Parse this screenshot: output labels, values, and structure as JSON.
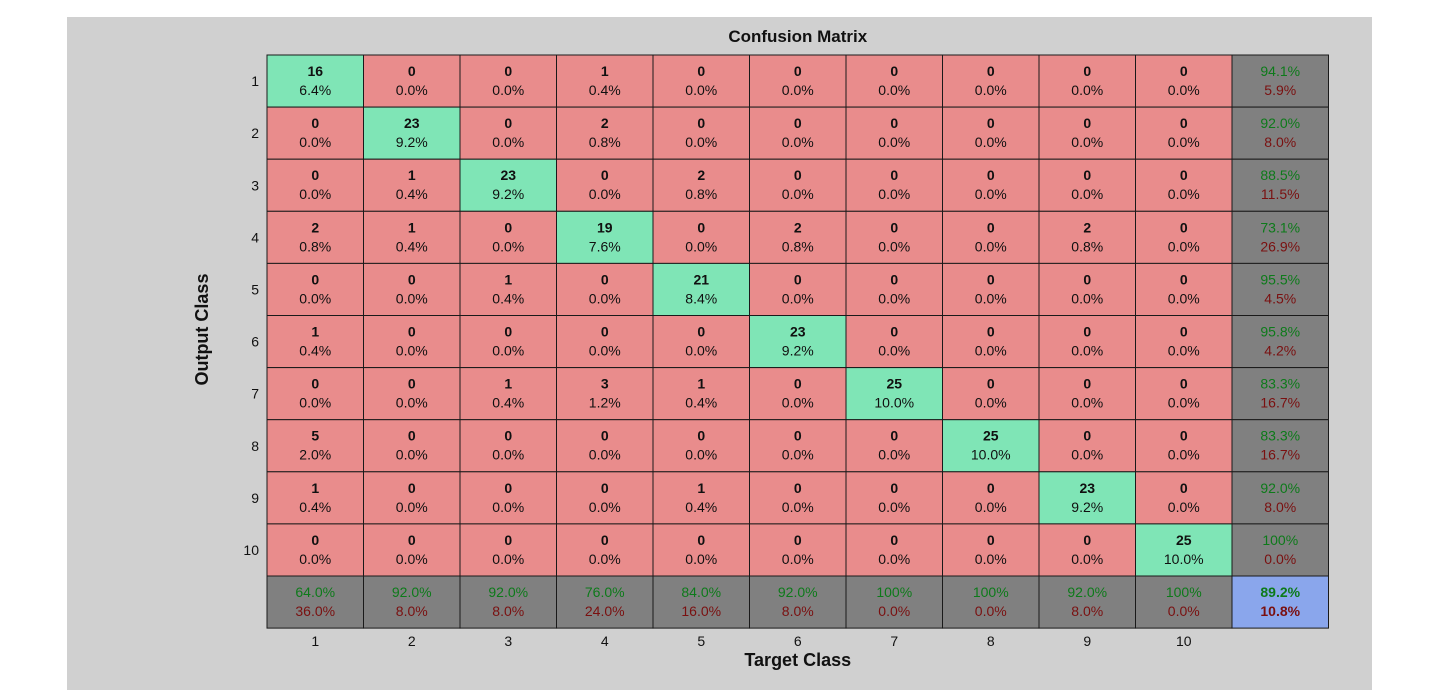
{
  "chart_data": {
    "type": "heatmap",
    "title": "Confusion Matrix",
    "xlabel": "Target Class",
    "ylabel": "Output Class",
    "row_labels": [
      "1",
      "2",
      "3",
      "4",
      "5",
      "6",
      "7",
      "8",
      "9",
      "10"
    ],
    "col_labels": [
      "1",
      "2",
      "3",
      "4",
      "5",
      "6",
      "7",
      "8",
      "9",
      "10"
    ],
    "counts": [
      [
        16,
        0,
        0,
        1,
        0,
        0,
        0,
        0,
        0,
        0
      ],
      [
        0,
        23,
        0,
        2,
        0,
        0,
        0,
        0,
        0,
        0
      ],
      [
        0,
        1,
        23,
        0,
        2,
        0,
        0,
        0,
        0,
        0
      ],
      [
        2,
        1,
        0,
        19,
        0,
        2,
        0,
        0,
        2,
        0
      ],
      [
        0,
        0,
        1,
        0,
        21,
        0,
        0,
        0,
        0,
        0
      ],
      [
        1,
        0,
        0,
        0,
        0,
        23,
        0,
        0,
        0,
        0
      ],
      [
        0,
        0,
        1,
        3,
        1,
        0,
        25,
        0,
        0,
        0
      ],
      [
        5,
        0,
        0,
        0,
        0,
        0,
        0,
        25,
        0,
        0
      ],
      [
        1,
        0,
        0,
        0,
        1,
        0,
        0,
        0,
        23,
        0
      ],
      [
        0,
        0,
        0,
        0,
        0,
        0,
        0,
        0,
        0,
        25
      ]
    ],
    "percents": [
      [
        "6.4%",
        "0.0%",
        "0.0%",
        "0.4%",
        "0.0%",
        "0.0%",
        "0.0%",
        "0.0%",
        "0.0%",
        "0.0%"
      ],
      [
        "0.0%",
        "9.2%",
        "0.0%",
        "0.8%",
        "0.0%",
        "0.0%",
        "0.0%",
        "0.0%",
        "0.0%",
        "0.0%"
      ],
      [
        "0.0%",
        "0.4%",
        "9.2%",
        "0.0%",
        "0.8%",
        "0.0%",
        "0.0%",
        "0.0%",
        "0.0%",
        "0.0%"
      ],
      [
        "0.8%",
        "0.4%",
        "0.0%",
        "7.6%",
        "0.0%",
        "0.8%",
        "0.0%",
        "0.0%",
        "0.8%",
        "0.0%"
      ],
      [
        "0.0%",
        "0.0%",
        "0.4%",
        "0.0%",
        "8.4%",
        "0.0%",
        "0.0%",
        "0.0%",
        "0.0%",
        "0.0%"
      ],
      [
        "0.4%",
        "0.0%",
        "0.0%",
        "0.0%",
        "0.0%",
        "9.2%",
        "0.0%",
        "0.0%",
        "0.0%",
        "0.0%"
      ],
      [
        "0.0%",
        "0.0%",
        "0.4%",
        "1.2%",
        "0.4%",
        "0.0%",
        "10.0%",
        "0.0%",
        "0.0%",
        "0.0%"
      ],
      [
        "2.0%",
        "0.0%",
        "0.0%",
        "0.0%",
        "0.0%",
        "0.0%",
        "0.0%",
        "10.0%",
        "0.0%",
        "0.0%"
      ],
      [
        "0.4%",
        "0.0%",
        "0.0%",
        "0.0%",
        "0.4%",
        "0.0%",
        "0.0%",
        "0.0%",
        "9.2%",
        "0.0%"
      ],
      [
        "0.0%",
        "0.0%",
        "0.0%",
        "0.0%",
        "0.0%",
        "0.0%",
        "0.0%",
        "0.0%",
        "0.0%",
        "10.0%"
      ]
    ],
    "row_summary": [
      [
        "94.1%",
        "5.9%"
      ],
      [
        "92.0%",
        "8.0%"
      ],
      [
        "88.5%",
        "11.5%"
      ],
      [
        "73.1%",
        "26.9%"
      ],
      [
        "95.5%",
        "4.5%"
      ],
      [
        "95.8%",
        "4.2%"
      ],
      [
        "83.3%",
        "16.7%"
      ],
      [
        "83.3%",
        "16.7%"
      ],
      [
        "92.0%",
        "8.0%"
      ],
      [
        "100%",
        "0.0%"
      ]
    ],
    "col_summary": [
      [
        "64.0%",
        "36.0%"
      ],
      [
        "92.0%",
        "8.0%"
      ],
      [
        "92.0%",
        "8.0%"
      ],
      [
        "76.0%",
        "24.0%"
      ],
      [
        "84.0%",
        "16.0%"
      ],
      [
        "92.0%",
        "8.0%"
      ],
      [
        "100%",
        "0.0%"
      ],
      [
        "100%",
        "0.0%"
      ],
      [
        "92.0%",
        "8.0%"
      ],
      [
        "100%",
        "0.0%"
      ]
    ],
    "overall": [
      "89.2%",
      "10.8%"
    ],
    "colors": {
      "background": "#d0d0d0",
      "correct": "#7fe5b6",
      "incorrect": "#e98c8c",
      "summary": "#808080",
      "overall": "#8aa6ec",
      "correct_text": "#0d7a1a",
      "incorrect_text": "#7a1010",
      "cell_text": "#101010"
    }
  }
}
